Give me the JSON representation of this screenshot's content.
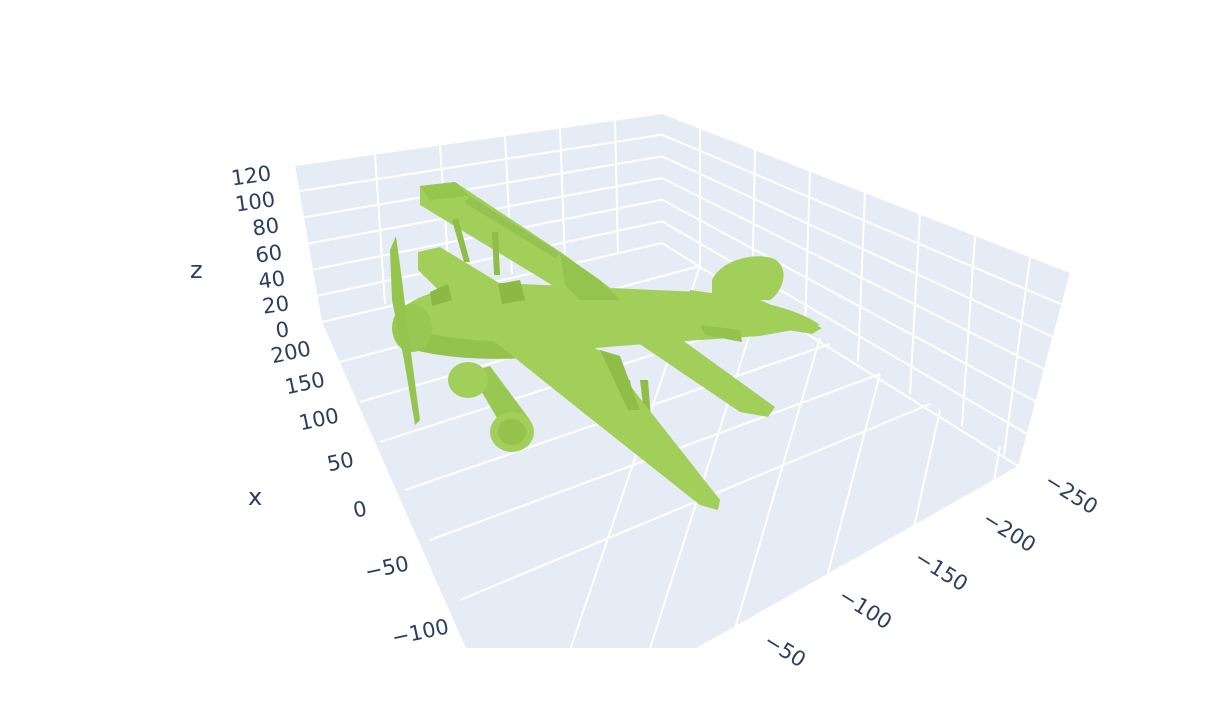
{
  "chart_data": {
    "type": "mesh3d",
    "title": "",
    "mesh_color": "#a1cf5a",
    "pane_color": "#e5ecf6",
    "grid": true,
    "axes": {
      "x": {
        "title": "x",
        "ticks": [
          "200",
          "150",
          "100",
          "50",
          "0",
          "−50",
          "−100"
        ],
        "values": [
          200,
          150,
          100,
          50,
          0,
          -50,
          -100
        ]
      },
      "y": {
        "title": "",
        "ticks": [
          "−250",
          "−200",
          "−150",
          "−100",
          "−50"
        ],
        "values": [
          -250,
          -200,
          -150,
          -100,
          -50
        ]
      },
      "z": {
        "title": "z",
        "ticks": [
          "120",
          "100",
          "80",
          "60",
          "40",
          "20",
          "0"
        ],
        "values": [
          120,
          100,
          80,
          60,
          40,
          20,
          0
        ]
      }
    },
    "object": "biplane"
  }
}
